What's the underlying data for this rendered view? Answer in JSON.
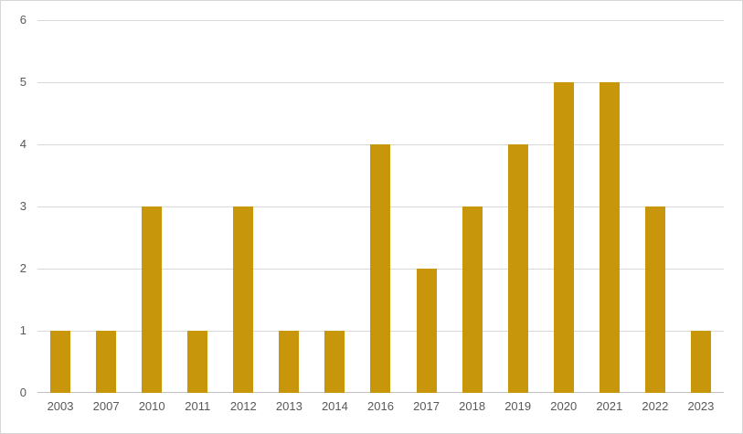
{
  "chart": {
    "background_color": "#FFFFFF",
    "border_color": "#D6D6D6",
    "bar_color": "#C8960A",
    "gridline_color": "#D9D9D9",
    "axis_line_color": "#BFBFBF",
    "tick_label_color": "#595959"
  },
  "chart_data": {
    "type": "bar",
    "title": "",
    "categories": [
      "2003",
      "2007",
      "2010",
      "2011",
      "2012",
      "2013",
      "2014",
      "2016",
      "2017",
      "2018",
      "2019",
      "2020",
      "2021",
      "2022",
      "2023"
    ],
    "values": [
      1,
      1,
      3,
      1,
      3,
      1,
      1,
      4,
      2,
      3,
      4,
      5,
      5,
      3,
      1
    ],
    "xlabel": "",
    "ylabel": "",
    "ylim": [
      0,
      6
    ],
    "yticks": [
      0,
      1,
      2,
      3,
      4,
      5,
      6
    ],
    "grid": true,
    "legend": false
  }
}
